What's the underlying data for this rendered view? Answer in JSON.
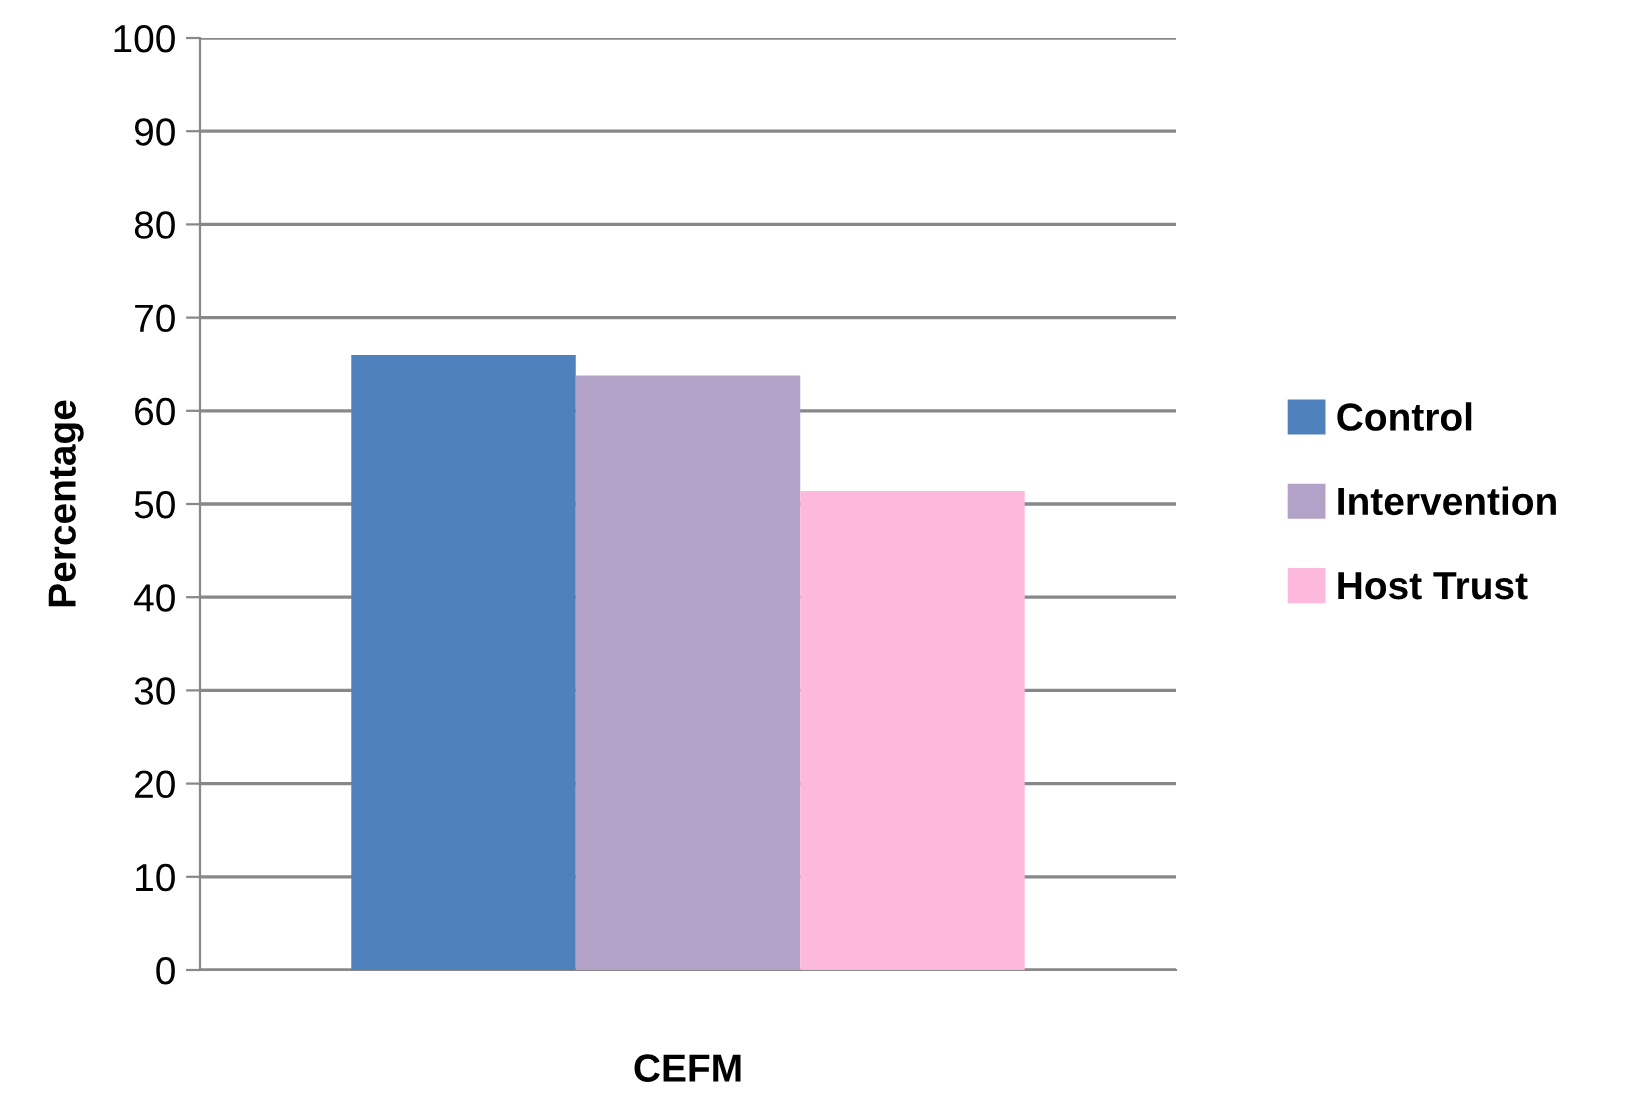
{
  "chart_data": {
    "type": "bar",
    "xlabel": "CEFM",
    "ylabel": "Percentage",
    "categories": [
      null
    ],
    "series": [
      {
        "name": "Control",
        "color": "#4f81bd",
        "values": [
          66.0
        ]
      },
      {
        "name": "Intervention",
        "color": "#b3a2c7",
        "values": [
          63.8
        ]
      },
      {
        "name": "Host Trust",
        "color": "#fdb9dc",
        "values": [
          51.4
        ]
      }
    ],
    "ylim": [
      0,
      100
    ],
    "yticks": [
      0,
      10,
      20,
      30,
      40,
      50,
      60,
      70,
      80,
      90,
      100
    ],
    "grid": "y",
    "legend": "right",
    "tick_labels": "y"
  }
}
